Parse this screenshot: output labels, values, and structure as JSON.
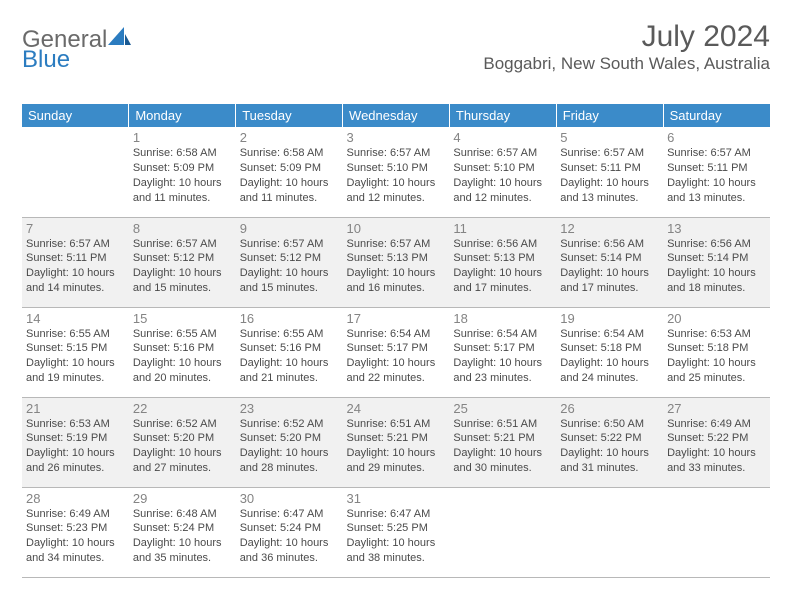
{
  "brand": {
    "general": "General",
    "blue": "Blue"
  },
  "title": "July 2024",
  "location": "Boggabri, New South Wales, Australia",
  "colors": {
    "header_bg": "#3b8bc9",
    "header_text": "#ffffff",
    "daynum": "#848484",
    "daytext": "#4a4a4a",
    "shaded": "#f1f1f1",
    "border": "#b8b8b8",
    "logo_gray": "#6a6a6a",
    "logo_blue": "#2b7cc0"
  },
  "weekdays": [
    "Sunday",
    "Monday",
    "Tuesday",
    "Wednesday",
    "Thursday",
    "Friday",
    "Saturday"
  ],
  "weeks": [
    {
      "shaded": false,
      "days": [
        null,
        {
          "n": "1",
          "sunrise": "6:58 AM",
          "sunset": "5:09 PM",
          "dh": "10",
          "dm": "11"
        },
        {
          "n": "2",
          "sunrise": "6:58 AM",
          "sunset": "5:09 PM",
          "dh": "10",
          "dm": "11"
        },
        {
          "n": "3",
          "sunrise": "6:57 AM",
          "sunset": "5:10 PM",
          "dh": "10",
          "dm": "12"
        },
        {
          "n": "4",
          "sunrise": "6:57 AM",
          "sunset": "5:10 PM",
          "dh": "10",
          "dm": "12"
        },
        {
          "n": "5",
          "sunrise": "6:57 AM",
          "sunset": "5:11 PM",
          "dh": "10",
          "dm": "13"
        },
        {
          "n": "6",
          "sunrise": "6:57 AM",
          "sunset": "5:11 PM",
          "dh": "10",
          "dm": "13"
        }
      ]
    },
    {
      "shaded": true,
      "days": [
        {
          "n": "7",
          "sunrise": "6:57 AM",
          "sunset": "5:11 PM",
          "dh": "10",
          "dm": "14"
        },
        {
          "n": "8",
          "sunrise": "6:57 AM",
          "sunset": "5:12 PM",
          "dh": "10",
          "dm": "15"
        },
        {
          "n": "9",
          "sunrise": "6:57 AM",
          "sunset": "5:12 PM",
          "dh": "10",
          "dm": "15"
        },
        {
          "n": "10",
          "sunrise": "6:57 AM",
          "sunset": "5:13 PM",
          "dh": "10",
          "dm": "16"
        },
        {
          "n": "11",
          "sunrise": "6:56 AM",
          "sunset": "5:13 PM",
          "dh": "10",
          "dm": "17"
        },
        {
          "n": "12",
          "sunrise": "6:56 AM",
          "sunset": "5:14 PM",
          "dh": "10",
          "dm": "17"
        },
        {
          "n": "13",
          "sunrise": "6:56 AM",
          "sunset": "5:14 PM",
          "dh": "10",
          "dm": "18"
        }
      ]
    },
    {
      "shaded": false,
      "days": [
        {
          "n": "14",
          "sunrise": "6:55 AM",
          "sunset": "5:15 PM",
          "dh": "10",
          "dm": "19"
        },
        {
          "n": "15",
          "sunrise": "6:55 AM",
          "sunset": "5:16 PM",
          "dh": "10",
          "dm": "20"
        },
        {
          "n": "16",
          "sunrise": "6:55 AM",
          "sunset": "5:16 PM",
          "dh": "10",
          "dm": "21"
        },
        {
          "n": "17",
          "sunrise": "6:54 AM",
          "sunset": "5:17 PM",
          "dh": "10",
          "dm": "22"
        },
        {
          "n": "18",
          "sunrise": "6:54 AM",
          "sunset": "5:17 PM",
          "dh": "10",
          "dm": "23"
        },
        {
          "n": "19",
          "sunrise": "6:54 AM",
          "sunset": "5:18 PM",
          "dh": "10",
          "dm": "24"
        },
        {
          "n": "20",
          "sunrise": "6:53 AM",
          "sunset": "5:18 PM",
          "dh": "10",
          "dm": "25"
        }
      ]
    },
    {
      "shaded": true,
      "days": [
        {
          "n": "21",
          "sunrise": "6:53 AM",
          "sunset": "5:19 PM",
          "dh": "10",
          "dm": "26"
        },
        {
          "n": "22",
          "sunrise": "6:52 AM",
          "sunset": "5:20 PM",
          "dh": "10",
          "dm": "27"
        },
        {
          "n": "23",
          "sunrise": "6:52 AM",
          "sunset": "5:20 PM",
          "dh": "10",
          "dm": "28"
        },
        {
          "n": "24",
          "sunrise": "6:51 AM",
          "sunset": "5:21 PM",
          "dh": "10",
          "dm": "29"
        },
        {
          "n": "25",
          "sunrise": "6:51 AM",
          "sunset": "5:21 PM",
          "dh": "10",
          "dm": "30"
        },
        {
          "n": "26",
          "sunrise": "6:50 AM",
          "sunset": "5:22 PM",
          "dh": "10",
          "dm": "31"
        },
        {
          "n": "27",
          "sunrise": "6:49 AM",
          "sunset": "5:22 PM",
          "dh": "10",
          "dm": "33"
        }
      ]
    },
    {
      "shaded": false,
      "days": [
        {
          "n": "28",
          "sunrise": "6:49 AM",
          "sunset": "5:23 PM",
          "dh": "10",
          "dm": "34"
        },
        {
          "n": "29",
          "sunrise": "6:48 AM",
          "sunset": "5:24 PM",
          "dh": "10",
          "dm": "35"
        },
        {
          "n": "30",
          "sunrise": "6:47 AM",
          "sunset": "5:24 PM",
          "dh": "10",
          "dm": "36"
        },
        {
          "n": "31",
          "sunrise": "6:47 AM",
          "sunset": "5:25 PM",
          "dh": "10",
          "dm": "38"
        },
        null,
        null,
        null
      ]
    }
  ],
  "labels": {
    "sunrise": "Sunrise: ",
    "sunset": "Sunset: ",
    "daylight_prefix": "Daylight: ",
    "hours_word": " hours",
    "and_word": "and ",
    "minutes_word": " minutes."
  }
}
